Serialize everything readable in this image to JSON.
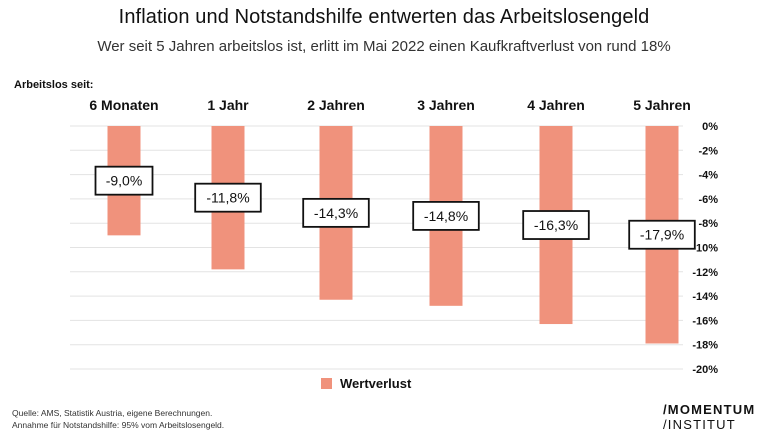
{
  "chart_data": {
    "type": "bar",
    "title": "Inflation und Notstandshilfe entwerten das Arbeitslosengeld",
    "subtitle": "Wer seit 5 Jahren arbeitslos ist, erlitt im Mai 2022 einen Kaufkraftverlust von rund 18%",
    "category_axis_title": "Arbeitslos seit:",
    "categories": [
      "6 Monaten",
      "1 Jahr",
      "2 Jahren",
      "3 Jahren",
      "4 Jahren",
      "5 Jahren"
    ],
    "series": [
      {
        "name": "Wertverlust",
        "values": [
          -9.0,
          -11.8,
          -14.3,
          -14.8,
          -16.3,
          -17.9
        ],
        "labels": [
          "-9,0%",
          "-11,8%",
          "-14,3%",
          "-14,8%",
          "-16,3%",
          "-17,9%"
        ]
      }
    ],
    "ylim": [
      -20,
      0
    ],
    "yticks": [
      0,
      -2,
      -4,
      -6,
      -8,
      -10,
      -12,
      -14,
      -16,
      -18,
      -20
    ],
    "ytick_labels": [
      "0%",
      "-2%",
      "-4%",
      "-6%",
      "-8%",
      "-10%",
      "-12%",
      "-14%",
      "-16%",
      "-18%",
      "-20%"
    ],
    "grid": true,
    "legend_position": "bottom"
  },
  "colors": {
    "bar": "#f0927c",
    "grid": "#e3e3e3",
    "text": "#111111"
  },
  "footer": {
    "source_line1": "Quelle: AMS, Statistik Austria, eigene Berechnungen.",
    "source_line2": "Annahme für Notstandshilfe: 95% vom Arbeitslosengeld.",
    "logo_line1": "/MOMENTUM",
    "logo_line2": "/INSTITUT"
  }
}
